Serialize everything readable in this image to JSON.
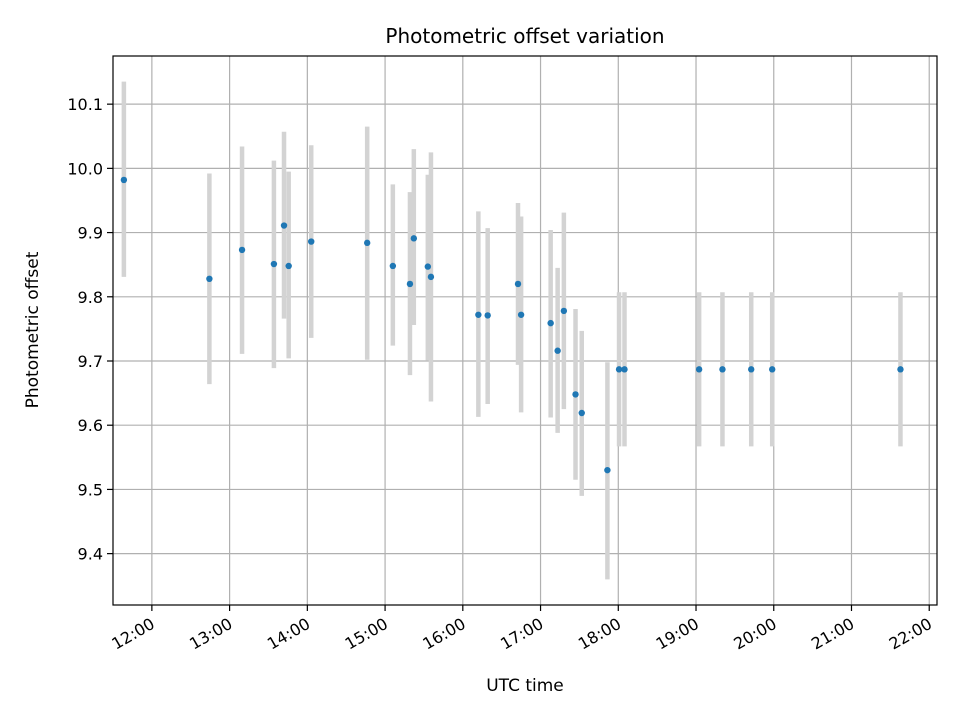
{
  "chart_data": {
    "type": "scatter",
    "title": "Photometric offset variation",
    "xlabel": "UTC time",
    "ylabel": "Photometric offset",
    "x_unit": "hours UTC",
    "xlim": [
      11.5,
      22.1
    ],
    "ylim": [
      9.32,
      10.175
    ],
    "x_ticks": [
      {
        "value": 12,
        "label": "12:00"
      },
      {
        "value": 13,
        "label": "13:00"
      },
      {
        "value": 14,
        "label": "14:00"
      },
      {
        "value": 15,
        "label": "15:00"
      },
      {
        "value": 16,
        "label": "16:00"
      },
      {
        "value": 17,
        "label": "17:00"
      },
      {
        "value": 18,
        "label": "18:00"
      },
      {
        "value": 19,
        "label": "19:00"
      },
      {
        "value": 20,
        "label": "20:00"
      },
      {
        "value": 21,
        "label": "21:00"
      },
      {
        "value": 22,
        "label": "22:00"
      }
    ],
    "y_ticks": [
      {
        "value": 9.4,
        "label": "9.4"
      },
      {
        "value": 9.5,
        "label": "9.5"
      },
      {
        "value": 9.6,
        "label": "9.6"
      },
      {
        "value": 9.7,
        "label": "9.7"
      },
      {
        "value": 9.8,
        "label": "9.8"
      },
      {
        "value": 9.9,
        "label": "9.9"
      },
      {
        "value": 10.0,
        "label": "10.0"
      },
      {
        "value": 10.1,
        "label": "10.1"
      }
    ],
    "grid": true,
    "colors": {
      "marker": "#1f77b4",
      "errorbar": "#d3d3d3",
      "grid": "#b0b0b0"
    },
    "points": [
      {
        "x": 11.64,
        "y": 9.982,
        "lo": 9.831,
        "hi": 10.135
      },
      {
        "x": 12.74,
        "y": 9.828,
        "lo": 9.664,
        "hi": 9.992
      },
      {
        "x": 13.16,
        "y": 9.873,
        "lo": 9.711,
        "hi": 10.034
      },
      {
        "x": 13.57,
        "y": 9.851,
        "lo": 9.689,
        "hi": 10.012
      },
      {
        "x": 13.7,
        "y": 9.911,
        "lo": 9.766,
        "hi": 10.057
      },
      {
        "x": 13.76,
        "y": 9.848,
        "lo": 9.704,
        "hi": 9.995
      },
      {
        "x": 14.05,
        "y": 9.886,
        "lo": 9.736,
        "hi": 10.036
      },
      {
        "x": 14.77,
        "y": 9.884,
        "lo": 9.702,
        "hi": 10.065
      },
      {
        "x": 15.1,
        "y": 9.848,
        "lo": 9.724,
        "hi": 9.975
      },
      {
        "x": 15.32,
        "y": 9.82,
        "lo": 9.678,
        "hi": 9.963
      },
      {
        "x": 15.37,
        "y": 9.891,
        "lo": 9.756,
        "hi": 10.03
      },
      {
        "x": 15.55,
        "y": 9.847,
        "lo": 9.701,
        "hi": 9.99
      },
      {
        "x": 15.59,
        "y": 9.831,
        "lo": 9.637,
        "hi": 10.025
      },
      {
        "x": 16.2,
        "y": 9.772,
        "lo": 9.613,
        "hi": 9.933
      },
      {
        "x": 16.32,
        "y": 9.771,
        "lo": 9.633,
        "hi": 9.907
      },
      {
        "x": 16.71,
        "y": 9.82,
        "lo": 9.694,
        "hi": 9.946
      },
      {
        "x": 16.75,
        "y": 9.772,
        "lo": 9.62,
        "hi": 9.925
      },
      {
        "x": 17.13,
        "y": 9.759,
        "lo": 9.612,
        "hi": 9.904
      },
      {
        "x": 17.22,
        "y": 9.716,
        "lo": 9.588,
        "hi": 9.845
      },
      {
        "x": 17.3,
        "y": 9.778,
        "lo": 9.625,
        "hi": 9.931
      },
      {
        "x": 17.45,
        "y": 9.648,
        "lo": 9.515,
        "hi": 9.781
      },
      {
        "x": 17.53,
        "y": 9.619,
        "lo": 9.49,
        "hi": 9.747
      },
      {
        "x": 17.86,
        "y": 9.53,
        "lo": 9.36,
        "hi": 9.698
      },
      {
        "x": 18.01,
        "y": 9.687,
        "lo": 9.567,
        "hi": 9.807
      },
      {
        "x": 18.08,
        "y": 9.687,
        "lo": 9.567,
        "hi": 9.807
      },
      {
        "x": 19.04,
        "y": 9.687,
        "lo": 9.567,
        "hi": 9.807
      },
      {
        "x": 19.34,
        "y": 9.687,
        "lo": 9.567,
        "hi": 9.807
      },
      {
        "x": 19.71,
        "y": 9.687,
        "lo": 9.567,
        "hi": 9.807
      },
      {
        "x": 19.98,
        "y": 9.687,
        "lo": 9.567,
        "hi": 9.807
      },
      {
        "x": 21.63,
        "y": 9.687,
        "lo": 9.567,
        "hi": 9.807
      }
    ]
  }
}
